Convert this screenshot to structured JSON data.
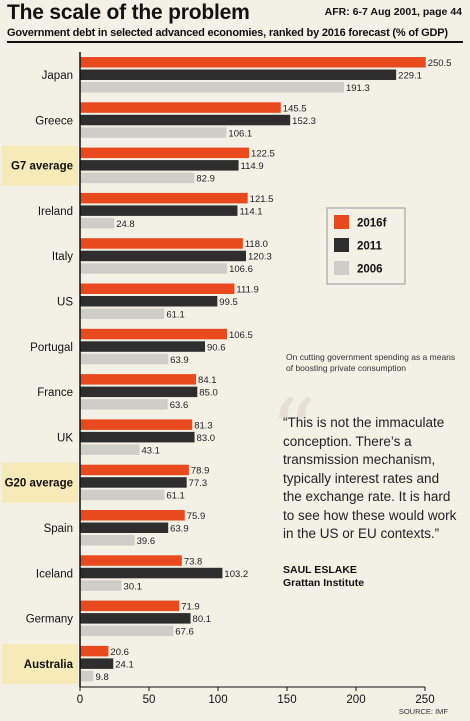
{
  "header": {
    "headline": "The scale of the problem",
    "source_note": "AFR: 6-7 Aug 2001, page 44",
    "subtitle": "Government debt  in selected advanced economies, ranked by 2016 forecast (% of GDP)"
  },
  "annotation": {
    "small_note": "On cutting government spending as a means of boosting private consumption",
    "quote_lines": [
      "“This is not the immaculate",
      "conception. There’s a",
      "transmission mechanism,",
      "typically interest rates and",
      "the exchange rate. It is hard",
      "to see how these would work",
      "in the US or EU contexts.”"
    ],
    "attribution_name": "SAUL ESLAKE",
    "attribution_org": "Grattan Institute"
  },
  "footer": {
    "source": "SOURCE: IMF"
  },
  "colors": {
    "s2016f": "#e8491d",
    "s2011": "#2e2e2e",
    "s2006": "#cfcdc8",
    "highlight": "#f6eab8"
  },
  "chart_data": {
    "type": "bar",
    "orientation": "horizontal",
    "categories": [
      "Japan",
      "Greece",
      "G7 average",
      "Ireland",
      "Italy",
      "US",
      "Portugal",
      "France",
      "UK",
      "G20 average",
      "Spain",
      "Iceland",
      "Germany",
      "Australia"
    ],
    "highlighted_categories": [
      "G7 average",
      "G20 average",
      "Australia"
    ],
    "series": [
      {
        "name": "2016f",
        "values": [
          250.5,
          145.5,
          122.5,
          121.5,
          118.0,
          111.9,
          106.5,
          84.1,
          81.3,
          78.9,
          75.9,
          73.8,
          71.9,
          20.6
        ]
      },
      {
        "name": "2011",
        "values": [
          229.1,
          152.3,
          114.9,
          114.1,
          120.3,
          99.5,
          90.6,
          85.0,
          83.0,
          77.3,
          63.9,
          103.2,
          80.1,
          24.1
        ]
      },
      {
        "name": "2006",
        "values": [
          191.3,
          106.1,
          82.9,
          24.8,
          106.6,
          61.1,
          63.9,
          63.6,
          43.1,
          61.1,
          39.6,
          30.1,
          67.6,
          9.8
        ]
      }
    ],
    "value_labels": [
      [
        "250.5",
        "145.5",
        "122.5",
        "121.5",
        "118.0",
        "111.9",
        "106.5",
        "84.1",
        "81.3",
        "78.9",
        "75.9",
        "73.8",
        "71.9",
        "20.6"
      ],
      [
        "229.1",
        "152.3",
        "114.9",
        "114.1",
        "120.3",
        "99.5",
        "90.6",
        "85.0",
        "83.0",
        "77.3",
        "63.9",
        "103.2",
        "80.1",
        "24.1"
      ],
      [
        "191.3",
        "106.1",
        "82.9",
        "24.8",
        "106.6",
        "61.1",
        "63.9",
        "63.6",
        "43.1",
        "61.1",
        "39.6",
        "30.1",
        "67.6",
        "9.8"
      ]
    ],
    "xlim": [
      0,
      250
    ],
    "xticks": [
      "0",
      "50",
      "100",
      "150",
      "200",
      "250"
    ],
    "grid": false,
    "legend": {
      "placement": "center-right",
      "entries": [
        "2016f",
        "2011",
        "2006"
      ]
    }
  }
}
